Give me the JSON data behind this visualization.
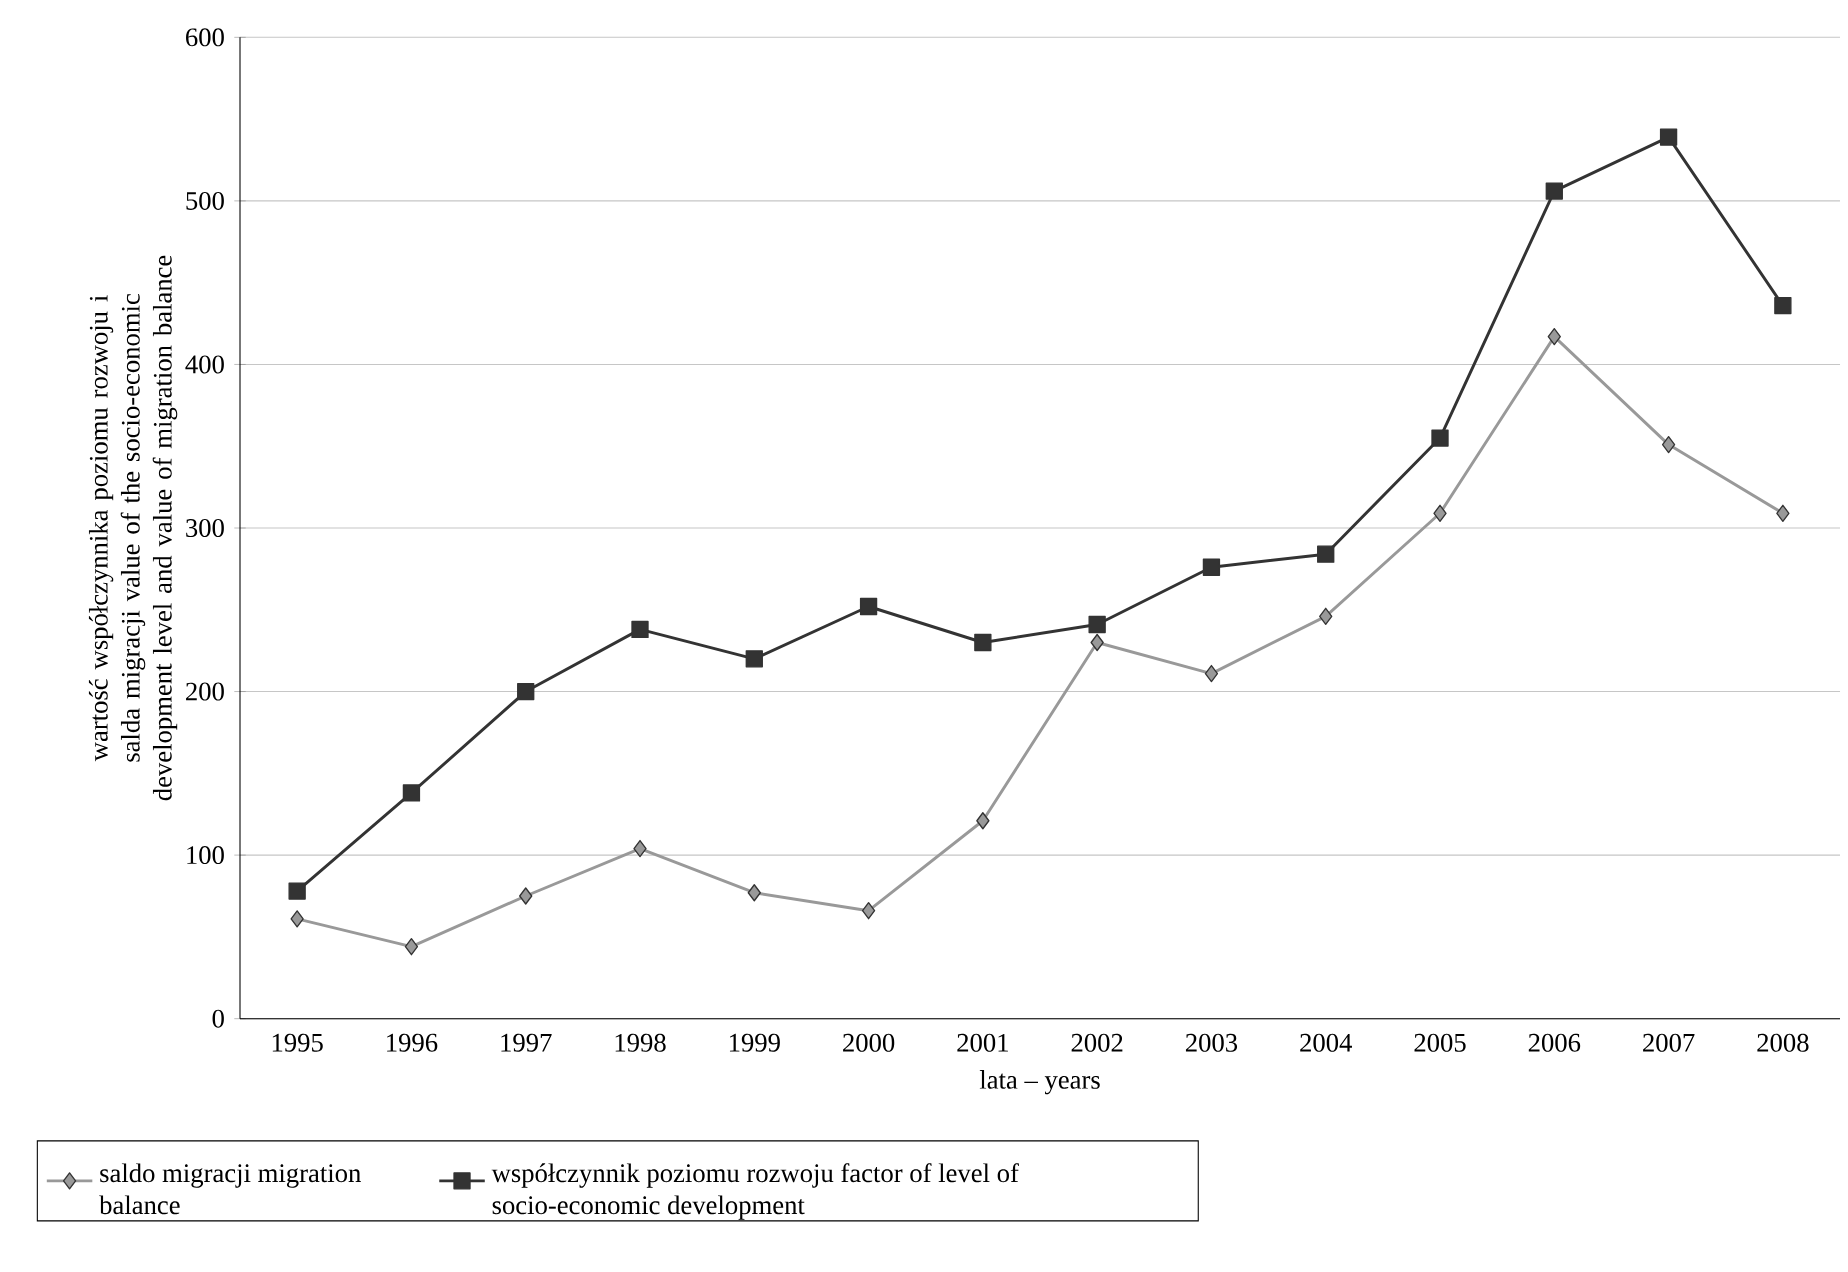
{
  "chart_data": {
    "type": "line",
    "xlabel": "lata – years",
    "ylabel": "wartość współczynnika poziomu rozwoju i salda migracji value of the socio-economic development level and value of migration balance",
    "categories": [
      "1995",
      "1996",
      "1997",
      "1998",
      "1999",
      "2000",
      "2001",
      "2002",
      "2003",
      "2004",
      "2005",
      "2006",
      "2007",
      "2008"
    ],
    "series": [
      {
        "name": "saldo migracji migration balance",
        "color": "#999999",
        "marker": "diamond",
        "values": [
          61,
          44,
          75,
          104,
          77,
          66,
          121,
          230,
          211,
          246,
          309,
          417,
          351,
          309
        ]
      },
      {
        "name": "współczynnik poziomu rozwoju factor of level of socio-economic development",
        "color": "#333333",
        "marker": "square",
        "values": [
          78,
          138,
          200,
          238,
          220,
          252,
          230,
          241,
          276,
          284,
          355,
          506,
          539,
          436
        ]
      }
    ],
    "ylim": [
      0,
      600
    ],
    "yticks": [
      0,
      100,
      200,
      300,
      400,
      500,
      600
    ],
    "grid": "y",
    "legend": "bottom",
    "line_style": "solid"
  }
}
